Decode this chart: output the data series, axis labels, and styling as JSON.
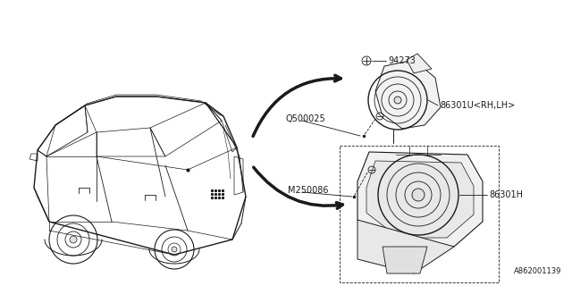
{
  "bg_color": "#ffffff",
  "line_color": "#1a1a1a",
  "gray_color": "#888888",
  "figsize": [
    6.4,
    3.2
  ],
  "dpi": 100,
  "labels": {
    "part1_screw": "94273",
    "part1_bracket": "Q500025",
    "part1_speaker": "86301U<RH,LH>",
    "part2_bolt": "M250086",
    "part2_speaker": "86301H",
    "diagram_id": "A862001139"
  },
  "font_size": 7,
  "label_font": "DejaVu Sans"
}
